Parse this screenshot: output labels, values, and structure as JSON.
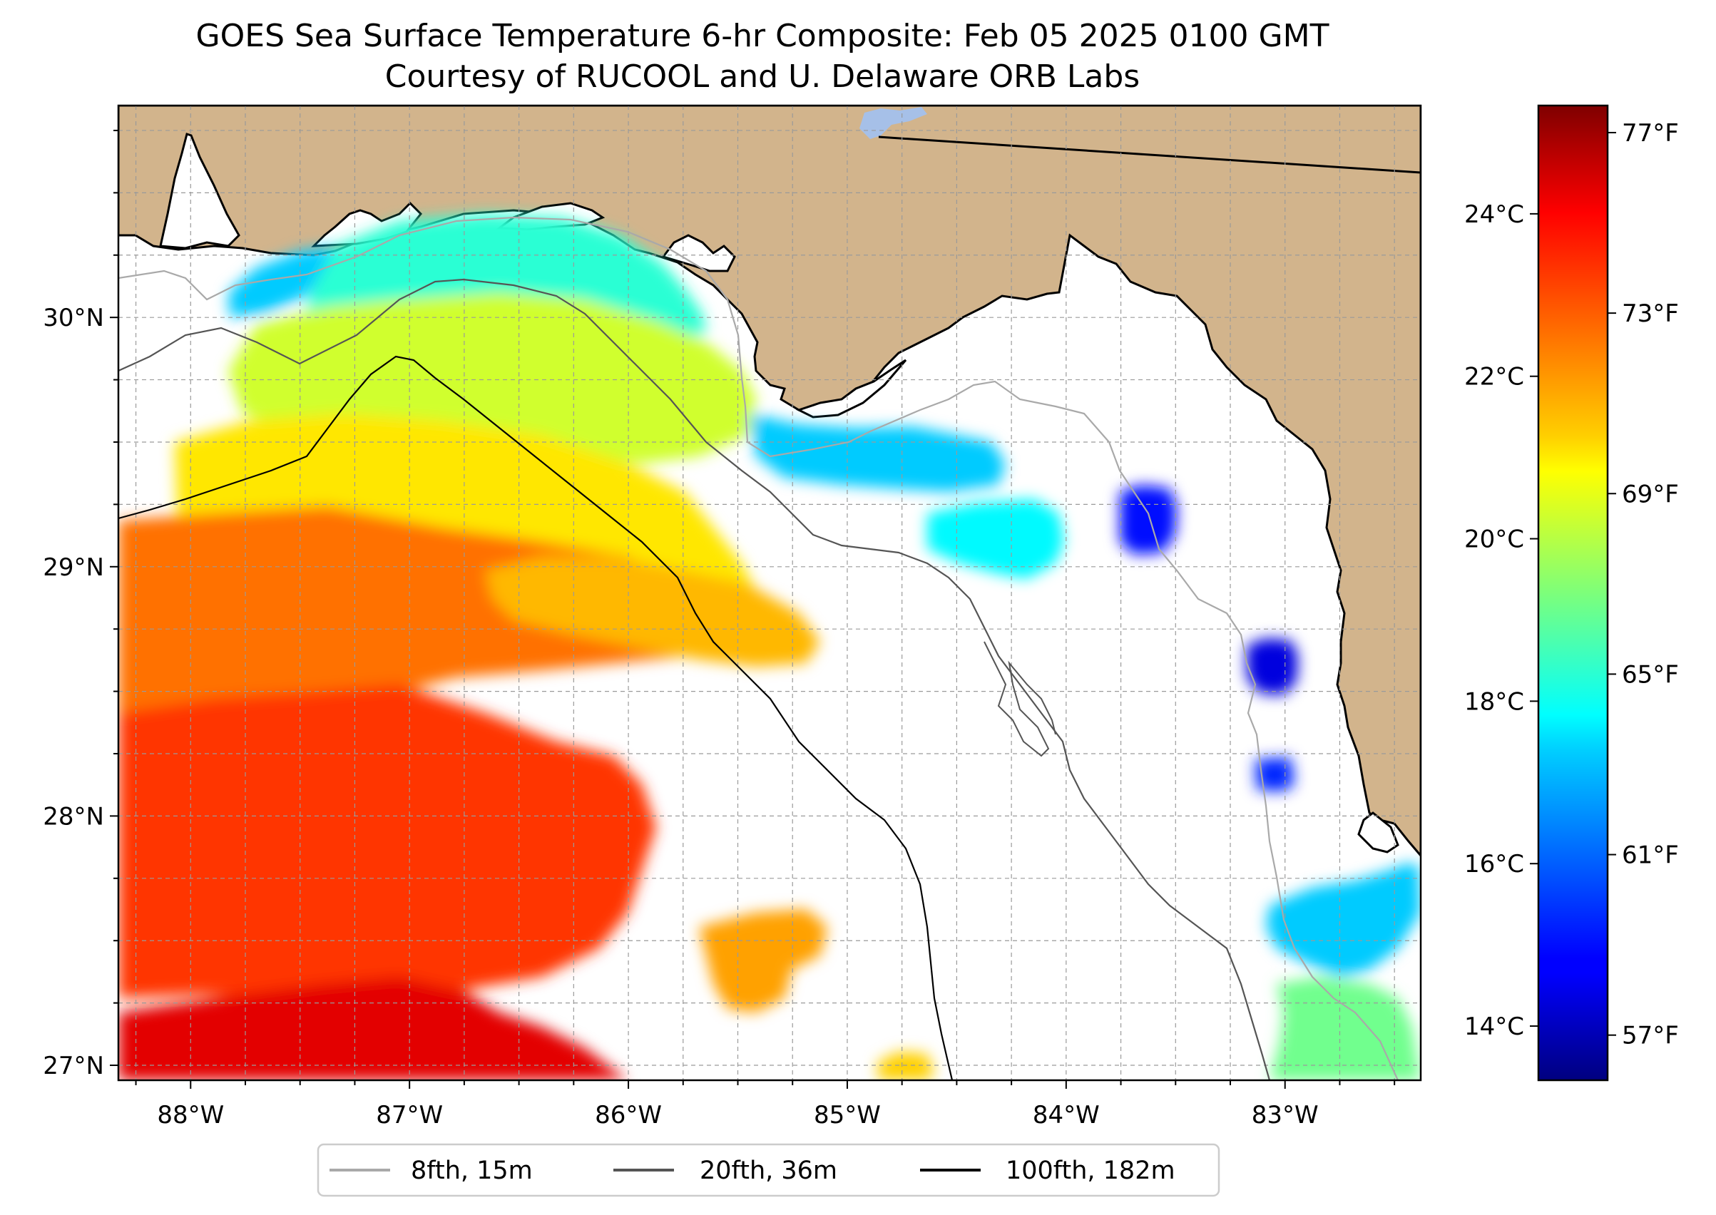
{
  "chart_data": {
    "type": "heatmap",
    "title": "GOES Sea Surface Temperature 6-hr Composite: Feb 05 2025 0100 GMT",
    "subtitle": "Courtesy of RUCOOL and U. Delaware ORB Labs",
    "lon_range": [
      -88.33,
      -82.38
    ],
    "lat_range": [
      26.94,
      30.85
    ],
    "lon_ticks": [
      {
        "value": -88,
        "label": "88°W"
      },
      {
        "value": -87,
        "label": "87°W"
      },
      {
        "value": -86,
        "label": "86°W"
      },
      {
        "value": -85,
        "label": "85°W"
      },
      {
        "value": -84,
        "label": "84°W"
      },
      {
        "value": -83,
        "label": "83°W"
      }
    ],
    "lat_ticks": [
      {
        "value": 27,
        "label": "27°N"
      },
      {
        "value": 28,
        "label": "28°N"
      },
      {
        "value": 29,
        "label": "29°N"
      },
      {
        "value": 30,
        "label": "30°N"
      }
    ],
    "colorbar": {
      "cmap": "jet",
      "range_f": [
        56,
        77.6
      ],
      "celsius_ticks": [
        {
          "value": 14,
          "label": "14°C"
        },
        {
          "value": 16,
          "label": "16°C"
        },
        {
          "value": 18,
          "label": "18°C"
        },
        {
          "value": 20,
          "label": "20°C"
        },
        {
          "value": 22,
          "label": "22°C"
        },
        {
          "value": 24,
          "label": "24°C"
        }
      ],
      "fahrenheit_ticks": [
        {
          "value": 57,
          "label": "57°F"
        },
        {
          "value": 61,
          "label": "61°F"
        },
        {
          "value": 65,
          "label": "65°F"
        },
        {
          "value": 69,
          "label": "69°F"
        },
        {
          "value": 73,
          "label": "73°F"
        },
        {
          "value": 77,
          "label": "77°F"
        }
      ]
    },
    "legend": {
      "placement": "bottom-center",
      "entries": [
        {
          "label": "8fth, 15m",
          "color": "#a9a9a9"
        },
        {
          "label": "20fth, 36m",
          "color": "#555555"
        },
        {
          "label": "100fth, 182m",
          "color": "#000000"
        }
      ]
    },
    "sst_patches_f": [
      {
        "region": "panhandle-nearshore-west",
        "lon": -87.5,
        "lat": 30.15,
        "temp_f": 63
      },
      {
        "region": "panhandle-nearshore",
        "lon": -86.6,
        "lat": 30.2,
        "temp_f": 65
      },
      {
        "region": "panhandle-mid",
        "lon": -86.8,
        "lat": 29.85,
        "temp_f": 68.5
      },
      {
        "region": "panhandle-offshore",
        "lon": -86.9,
        "lat": 29.6,
        "temp_f": 70
      },
      {
        "region": "apalachicola-blue",
        "lon": -84.8,
        "lat": 29.45,
        "temp_f": 63
      },
      {
        "region": "big-bend-cyan",
        "lon": -84.4,
        "lat": 29.15,
        "temp_f": 64
      },
      {
        "region": "west-shelf-warm",
        "lon": -87.6,
        "lat": 28.6,
        "temp_f": 72.5
      },
      {
        "region": "southwest-warm",
        "lon": -86.8,
        "lat": 27.6,
        "temp_f": 73.8
      },
      {
        "region": "south-hot",
        "lon": -87.2,
        "lat": 27.1,
        "temp_f": 75.5
      },
      {
        "region": "mid-shelf-warm",
        "lon": -85.5,
        "lat": 27.45,
        "temp_f": 71.5
      },
      {
        "region": "patch-85-29",
        "lon": -86.0,
        "lat": 28.9,
        "temp_f": 71
      },
      {
        "region": "tampa-coast",
        "lon": -82.9,
        "lat": 27.5,
        "temp_f": 63
      },
      {
        "region": "coast-cold-1",
        "lon": -83.6,
        "lat": 29.2,
        "temp_f": 59
      },
      {
        "region": "coast-cold-2",
        "lon": -83.05,
        "lat": 28.65,
        "temp_f": 58
      },
      {
        "region": "coast-cold-3",
        "lon": -83.0,
        "lat": 28.2,
        "temp_f": 59.5
      },
      {
        "region": "southeast-green",
        "lon": -82.9,
        "lat": 27.15,
        "temp_f": 66.5
      },
      {
        "region": "far-south-yellow",
        "lon": -84.75,
        "lat": 26.97,
        "temp_f": 70.5
      }
    ]
  }
}
